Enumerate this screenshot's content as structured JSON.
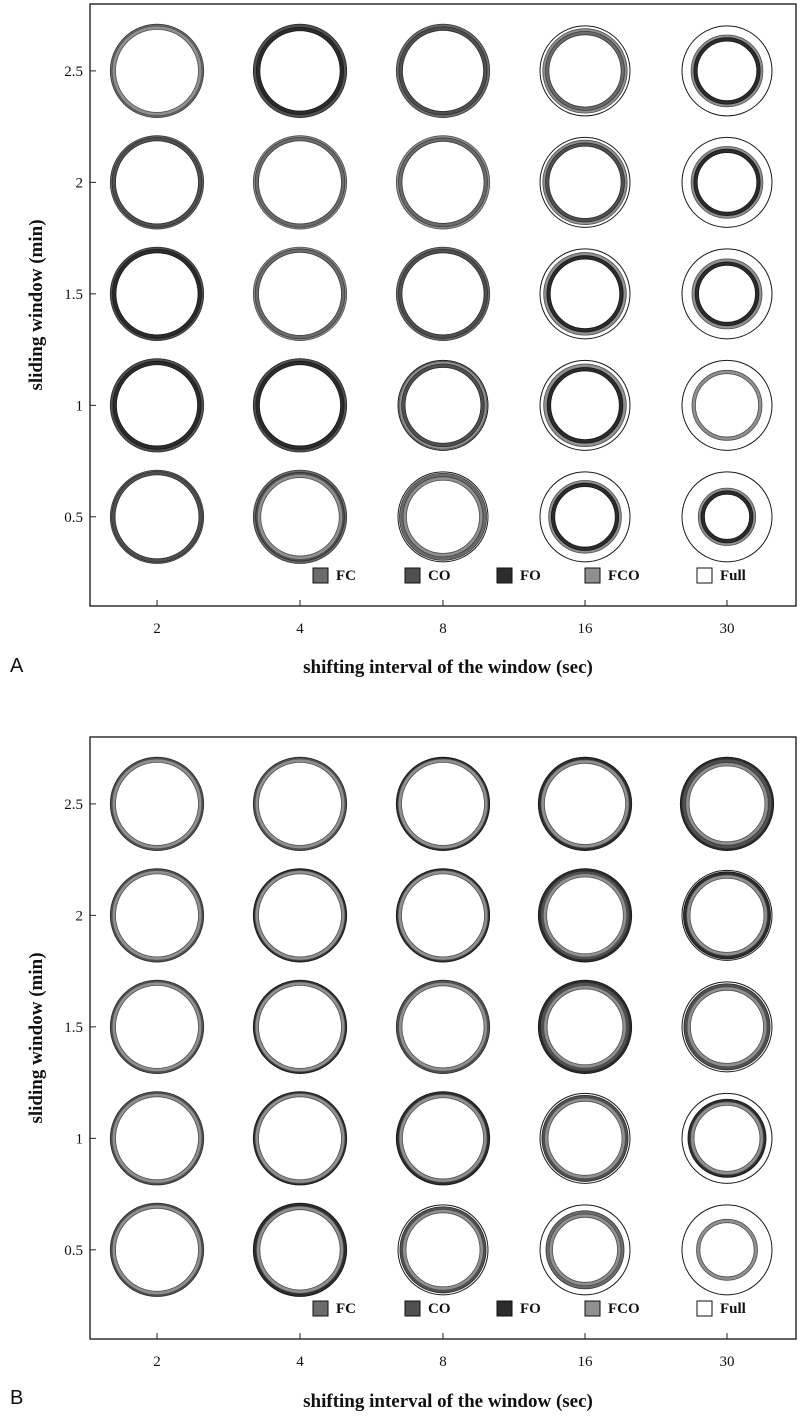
{
  "colors": {
    "FC": "#6b6b6b",
    "CO": "#505050",
    "FO": "#2c2c2c",
    "FCO": "#909090",
    "Full": "#ffffff",
    "frame": "#222222"
  },
  "chart_data": [
    {
      "type": "bubble-grid",
      "panel_label": "A",
      "xlabel": "shifting interval of the window (sec)",
      "ylabel": "sliding window (min)",
      "x_categories": [
        "2",
        "4",
        "8",
        "16",
        "30"
      ],
      "y_categories": [
        "0.5",
        "1",
        "1.5",
        "2",
        "2.5"
      ],
      "ylim": [
        0.1,
        2.8
      ],
      "legend_position": "bottom-right",
      "legend": [
        {
          "key": "FC",
          "label": "FC"
        },
        {
          "key": "CO",
          "label": "CO"
        },
        {
          "key": "FO",
          "label": "FO"
        },
        {
          "key": "FCO",
          "label": "FCO"
        },
        {
          "key": "Full",
          "label": "Full"
        }
      ],
      "cells": [
        {
          "x": "2",
          "y": "0.5",
          "rings": [
            {
              "s": "FC",
              "r": 1.0
            },
            {
              "s": "CO",
              "r": 0.97
            }
          ]
        },
        {
          "x": "4",
          "y": "0.5",
          "rings": [
            {
              "s": "FC",
              "r": 1.0
            },
            {
              "s": "CO",
              "r": 0.95
            },
            {
              "s": "FCO",
              "r": 0.91
            }
          ]
        },
        {
          "x": "8",
          "y": "0.5",
          "rings": [
            {
              "s": "Full",
              "r": 1.0
            },
            {
              "s": "FC",
              "r": 0.93
            },
            {
              "s": "FCO",
              "r": 0.85
            }
          ]
        },
        {
          "x": "16",
          "y": "0.5",
          "rings": [
            {
              "s": "Full",
              "r": 1.0
            },
            {
              "s": "FCO",
              "r": 0.77
            },
            {
              "s": "FO",
              "r": 0.71
            }
          ]
        },
        {
          "x": "30",
          "y": "0.5",
          "rings": [
            {
              "s": "Full",
              "r": 1.0
            },
            {
              "s": "FCO",
              "r": 0.6
            },
            {
              "s": "FO",
              "r": 0.54
            }
          ]
        },
        {
          "x": "2",
          "y": "1",
          "rings": [
            {
              "s": "CO",
              "r": 1.0
            },
            {
              "s": "FO",
              "r": 0.94
            }
          ]
        },
        {
          "x": "4",
          "y": "1",
          "rings": [
            {
              "s": "CO",
              "r": 1.0
            },
            {
              "s": "FO",
              "r": 0.94
            }
          ]
        },
        {
          "x": "8",
          "y": "1",
          "rings": [
            {
              "s": "Full",
              "r": 1.0
            },
            {
              "s": "FCO",
              "r": 0.94
            },
            {
              "s": "CO",
              "r": 0.88
            }
          ]
        },
        {
          "x": "16",
          "y": "1",
          "rings": [
            {
              "s": "Full",
              "r": 1.0
            },
            {
              "s": "FCO",
              "r": 0.88
            },
            {
              "s": "FO",
              "r": 0.8
            }
          ]
        },
        {
          "x": "30",
          "y": "1",
          "rings": [
            {
              "s": "Full",
              "r": 1.0
            },
            {
              "s": "FCO",
              "r": 0.74
            }
          ]
        },
        {
          "x": "2",
          "y": "1.5",
          "rings": [
            {
              "s": "CO",
              "r": 1.0
            },
            {
              "s": "FO",
              "r": 0.95
            }
          ]
        },
        {
          "x": "4",
          "y": "1.5",
          "rings": [
            {
              "s": "FCO",
              "r": 1.0
            },
            {
              "s": "FC",
              "r": 0.96
            }
          ]
        },
        {
          "x": "8",
          "y": "1.5",
          "rings": [
            {
              "s": "FC",
              "r": 1.0
            },
            {
              "s": "CO",
              "r": 0.95
            }
          ]
        },
        {
          "x": "16",
          "y": "1.5",
          "rings": [
            {
              "s": "Full",
              "r": 1.0
            },
            {
              "s": "FCO",
              "r": 0.88
            },
            {
              "s": "FO",
              "r": 0.81
            }
          ]
        },
        {
          "x": "30",
          "y": "1.5",
          "rings": [
            {
              "s": "Full",
              "r": 1.0
            },
            {
              "s": "FCO",
              "r": 0.74
            },
            {
              "s": "FO",
              "r": 0.67
            }
          ]
        },
        {
          "x": "2",
          "y": "2",
          "rings": [
            {
              "s": "FC",
              "r": 1.0
            },
            {
              "s": "CO",
              "r": 0.96
            }
          ]
        },
        {
          "x": "4",
          "y": "2",
          "rings": [
            {
              "s": "FCO",
              "r": 1.0
            },
            {
              "s": "FC",
              "r": 0.96
            }
          ]
        },
        {
          "x": "8",
          "y": "2",
          "rings": [
            {
              "s": "FCO",
              "r": 1.0
            },
            {
              "s": "FC",
              "r": 0.95
            }
          ]
        },
        {
          "x": "16",
          "y": "2",
          "rings": [
            {
              "s": "Full",
              "r": 1.0
            },
            {
              "s": "FCO",
              "r": 0.9
            },
            {
              "s": "CO",
              "r": 0.84
            }
          ]
        },
        {
          "x": "30",
          "y": "2",
          "rings": [
            {
              "s": "Full",
              "r": 1.0
            },
            {
              "s": "FCO",
              "r": 0.76
            },
            {
              "s": "FO",
              "r": 0.7
            }
          ]
        },
        {
          "x": "2",
          "y": "2.5",
          "rings": [
            {
              "s": "FC",
              "r": 1.0
            },
            {
              "s": "FCO",
              "r": 0.96
            }
          ]
        },
        {
          "x": "4",
          "y": "2.5",
          "rings": [
            {
              "s": "CO",
              "r": 1.0
            },
            {
              "s": "FO",
              "r": 0.93
            }
          ]
        },
        {
          "x": "8",
          "y": "2.5",
          "rings": [
            {
              "s": "FC",
              "r": 1.0
            },
            {
              "s": "CO",
              "r": 0.94
            }
          ]
        },
        {
          "x": "16",
          "y": "2.5",
          "rings": [
            {
              "s": "Full",
              "r": 1.0
            },
            {
              "s": "FCO",
              "r": 0.9
            },
            {
              "s": "FC",
              "r": 0.84
            }
          ]
        },
        {
          "x": "30",
          "y": "2.5",
          "rings": [
            {
              "s": "Full",
              "r": 1.0
            },
            {
              "s": "FCO",
              "r": 0.76
            },
            {
              "s": "FO",
              "r": 0.7
            }
          ]
        }
      ]
    },
    {
      "type": "bubble-grid",
      "panel_label": "B",
      "xlabel": "shifting interval of the window (sec)",
      "ylabel": "sliding window (min)",
      "x_categories": [
        "2",
        "4",
        "8",
        "16",
        "30"
      ],
      "y_categories": [
        "0.5",
        "1",
        "1.5",
        "2",
        "2.5"
      ],
      "ylim": [
        0.1,
        2.8
      ],
      "legend_position": "bottom-right",
      "legend": [
        {
          "key": "FC",
          "label": "FC"
        },
        {
          "key": "CO",
          "label": "CO"
        },
        {
          "key": "FO",
          "label": "FO"
        },
        {
          "key": "FCO",
          "label": "FCO"
        },
        {
          "key": "Full",
          "label": "Full"
        }
      ],
      "cells": [
        {
          "x": "2",
          "y": "0.5",
          "rings": [
            {
              "s": "CO",
              "r": 1.0
            },
            {
              "s": "FCO",
              "r": 0.96
            }
          ]
        },
        {
          "x": "4",
          "y": "0.5",
          "rings": [
            {
              "s": "FO",
              "r": 1.0
            },
            {
              "s": "FCO",
              "r": 0.93
            }
          ]
        },
        {
          "x": "8",
          "y": "0.5",
          "rings": [
            {
              "s": "Full",
              "r": 1.0
            },
            {
              "s": "CO",
              "r": 0.92
            },
            {
              "s": "FCO",
              "r": 0.86
            }
          ]
        },
        {
          "x": "16",
          "y": "0.5",
          "rings": [
            {
              "s": "Full",
              "r": 1.0
            },
            {
              "s": "FC",
              "r": 0.83
            },
            {
              "s": "FCO",
              "r": 0.76
            }
          ]
        },
        {
          "x": "30",
          "y": "0.5",
          "rings": [
            {
              "s": "Full",
              "r": 1.0
            },
            {
              "s": "FCO",
              "r": 0.64
            }
          ]
        },
        {
          "x": "2",
          "y": "1",
          "rings": [
            {
              "s": "CO",
              "r": 1.0
            },
            {
              "s": "FCO",
              "r": 0.96
            }
          ]
        },
        {
          "x": "4",
          "y": "1",
          "rings": [
            {
              "s": "FO",
              "r": 1.0
            },
            {
              "s": "FCO",
              "r": 0.96
            }
          ]
        },
        {
          "x": "8",
          "y": "1",
          "rings": [
            {
              "s": "FO",
              "r": 1.0
            },
            {
              "s": "FCO",
              "r": 0.94
            }
          ]
        },
        {
          "x": "16",
          "y": "1",
          "rings": [
            {
              "s": "Full",
              "r": 1.0
            },
            {
              "s": "CO",
              "r": 0.92
            },
            {
              "s": "FCO",
              "r": 0.86
            }
          ]
        },
        {
          "x": "30",
          "y": "1",
          "rings": [
            {
              "s": "Full",
              "r": 1.0
            },
            {
              "s": "FO",
              "r": 0.83
            },
            {
              "s": "FCO",
              "r": 0.77
            }
          ]
        },
        {
          "x": "2",
          "y": "1.5",
          "rings": [
            {
              "s": "CO",
              "r": 1.0
            },
            {
              "s": "FCO",
              "r": 0.96
            }
          ]
        },
        {
          "x": "4",
          "y": "1.5",
          "rings": [
            {
              "s": "FO",
              "r": 1.0
            },
            {
              "s": "FCO",
              "r": 0.96
            }
          ]
        },
        {
          "x": "8",
          "y": "1.5",
          "rings": [
            {
              "s": "CO",
              "r": 1.0
            },
            {
              "s": "FCO",
              "r": 0.95
            }
          ]
        },
        {
          "x": "16",
          "y": "1.5",
          "rings": [
            {
              "s": "FO",
              "r": 1.0
            },
            {
              "s": "CO",
              "r": 0.95
            },
            {
              "s": "FCO",
              "r": 0.88
            }
          ]
        },
        {
          "x": "30",
          "y": "1.5",
          "rings": [
            {
              "s": "Full",
              "r": 1.0
            },
            {
              "s": "CO",
              "r": 0.92
            },
            {
              "s": "FCO",
              "r": 0.85
            }
          ]
        },
        {
          "x": "2",
          "y": "2",
          "rings": [
            {
              "s": "CO",
              "r": 1.0
            },
            {
              "s": "FCO",
              "r": 0.96
            }
          ]
        },
        {
          "x": "4",
          "y": "2",
          "rings": [
            {
              "s": "FO",
              "r": 1.0
            },
            {
              "s": "FCO",
              "r": 0.96
            }
          ]
        },
        {
          "x": "8",
          "y": "2",
          "rings": [
            {
              "s": "FO",
              "r": 1.0
            },
            {
              "s": "FCO",
              "r": 0.96
            }
          ]
        },
        {
          "x": "16",
          "y": "2",
          "rings": [
            {
              "s": "FO",
              "r": 1.0
            },
            {
              "s": "CO",
              "r": 0.95
            },
            {
              "s": "FCO",
              "r": 0.89
            }
          ]
        },
        {
          "x": "30",
          "y": "2",
          "rings": [
            {
              "s": "Full",
              "r": 1.0
            },
            {
              "s": "FO",
              "r": 0.93
            },
            {
              "s": "FCO",
              "r": 0.86
            }
          ]
        },
        {
          "x": "2",
          "y": "2.5",
          "rings": [
            {
              "s": "CO",
              "r": 1.0
            },
            {
              "s": "FCO",
              "r": 0.96
            }
          ]
        },
        {
          "x": "4",
          "y": "2.5",
          "rings": [
            {
              "s": "CO",
              "r": 1.0
            },
            {
              "s": "FCO",
              "r": 0.96
            }
          ]
        },
        {
          "x": "8",
          "y": "2.5",
          "rings": [
            {
              "s": "FO",
              "r": 1.0
            },
            {
              "s": "FCO",
              "r": 0.96
            }
          ]
        },
        {
          "x": "16",
          "y": "2.5",
          "rings": [
            {
              "s": "FO",
              "r": 1.0
            },
            {
              "s": "FCO",
              "r": 0.94
            }
          ]
        },
        {
          "x": "30",
          "y": "2.5",
          "rings": [
            {
              "s": "FO",
              "r": 1.0
            },
            {
              "s": "CO",
              "r": 0.96
            },
            {
              "s": "FCO",
              "r": 0.88
            }
          ]
        }
      ]
    }
  ]
}
